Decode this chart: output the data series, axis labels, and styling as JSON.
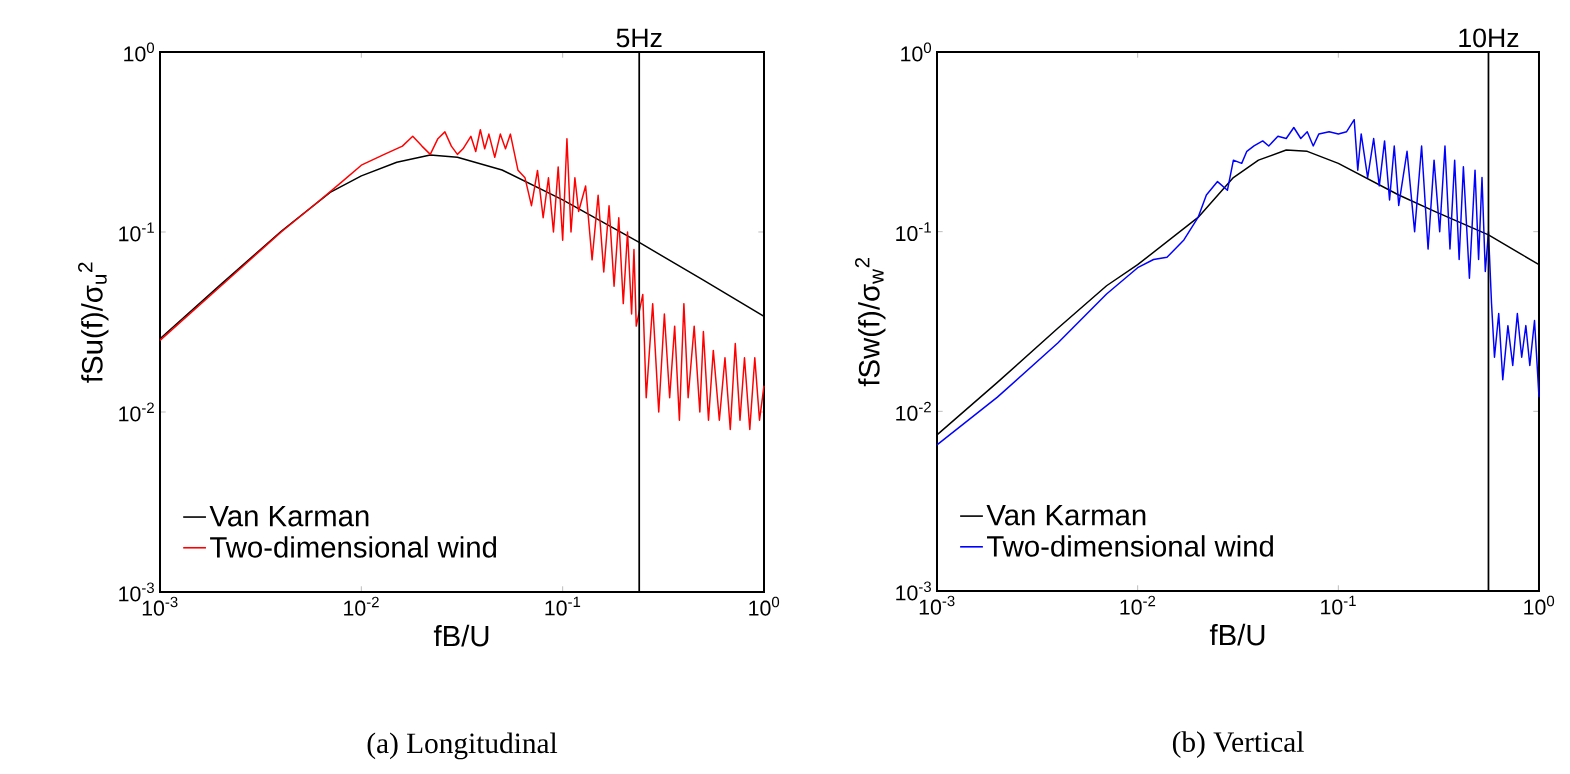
{
  "chart_data": [
    {
      "type": "line",
      "log": "xy",
      "xlabel": "fB/U",
      "ylabel": "fSu(f)/σ$_{u}$$^{2}$",
      "legend": "bottom left",
      "xlim": [
        0.001,
        1
      ],
      "ylim": [
        0.001,
        1
      ],
      "xticks": [
        {
          "value": 0.001,
          "label": "10$^{-3}$"
        },
        {
          "value": 0.01,
          "label": "10$^{-2}$"
        },
        {
          "value": 0.1,
          "label": "10$^{-1}$"
        },
        {
          "value": 1,
          "label": "10$^{0}$"
        }
      ],
      "yticks": [
        {
          "value": 0.001,
          "label": "10$^{-3}$"
        },
        {
          "value": 0.01,
          "label": "10$^{-2}$"
        },
        {
          "value": 0.1,
          "label": "10$^{-1}$"
        },
        {
          "value": 1,
          "label": "10$^{0}$"
        }
      ],
      "ref_lines": [
        {
          "axis": "x",
          "value": 0.24,
          "label": "5Hz",
          "color": "#000000"
        }
      ],
      "annotations": [
        "(a)  Longitudinal"
      ],
      "series": [
        {
          "name": "Van Karman",
          "color": "#000000",
          "x": [
            0.001,
            0.002,
            0.004,
            0.007,
            0.01,
            0.015,
            0.022,
            0.03,
            0.05,
            0.1,
            0.24,
            0.5,
            1
          ],
          "values": [
            0.0255,
            0.051,
            0.101,
            0.166,
            0.205,
            0.244,
            0.268,
            0.26,
            0.221,
            0.151,
            0.0875,
            0.054,
            0.034
          ]
        },
        {
          "name": "Two-dimensional wind",
          "color": "#ff0000",
          "x": [
            0.001,
            0.002,
            0.004,
            0.006,
            0.008,
            0.01,
            0.013,
            0.016,
            0.018,
            0.02,
            0.022,
            0.024,
            0.026,
            0.028,
            0.03,
            0.032,
            0.035,
            0.037,
            0.039,
            0.041,
            0.043,
            0.046,
            0.049,
            0.052,
            0.055,
            0.06,
            0.065,
            0.07,
            0.075,
            0.08,
            0.085,
            0.09,
            0.095,
            0.1,
            0.105,
            0.11,
            0.115,
            0.12,
            0.13,
            0.14,
            0.15,
            0.16,
            0.17,
            0.18,
            0.19,
            0.2,
            0.21,
            0.22,
            0.226,
            0.232,
            0.25,
            0.26,
            0.28,
            0.3,
            0.32,
            0.34,
            0.36,
            0.38,
            0.4,
            0.42,
            0.45,
            0.48,
            0.5,
            0.53,
            0.56,
            0.6,
            0.64,
            0.68,
            0.72,
            0.76,
            0.8,
            0.85,
            0.9,
            0.95,
            1.0
          ],
          "values": [
            0.025,
            0.05,
            0.1,
            0.145,
            0.19,
            0.235,
            0.27,
            0.3,
            0.34,
            0.3,
            0.27,
            0.33,
            0.36,
            0.3,
            0.27,
            0.29,
            0.34,
            0.28,
            0.37,
            0.29,
            0.35,
            0.26,
            0.35,
            0.29,
            0.35,
            0.22,
            0.2,
            0.14,
            0.22,
            0.12,
            0.2,
            0.1,
            0.23,
            0.09,
            0.33,
            0.1,
            0.2,
            0.13,
            0.18,
            0.07,
            0.16,
            0.06,
            0.14,
            0.05,
            0.12,
            0.04,
            0.1,
            0.035,
            0.08,
            0.03,
            0.045,
            0.012,
            0.04,
            0.01,
            0.035,
            0.012,
            0.03,
            0.009,
            0.04,
            0.012,
            0.03,
            0.01,
            0.028,
            0.009,
            0.022,
            0.009,
            0.02,
            0.008,
            0.024,
            0.009,
            0.02,
            0.008,
            0.02,
            0.009,
            0.014
          ]
        }
      ]
    },
    {
      "type": "line",
      "log": "xy",
      "xlabel": "fB/U",
      "ylabel": "fSw(f)/σ$_{w}$$^{2}$",
      "legend": "bottom left",
      "xlim": [
        0.001,
        1
      ],
      "ylim": [
        0.001,
        1
      ],
      "xticks": [
        {
          "value": 0.001,
          "label": "10$^{-3}$"
        },
        {
          "value": 0.01,
          "label": "10$^{-2}$"
        },
        {
          "value": 0.1,
          "label": "10$^{-1}$"
        },
        {
          "value": 1,
          "label": "10$^{0}$"
        }
      ],
      "yticks": [
        {
          "value": 0.001,
          "label": "10$^{-3}$"
        },
        {
          "value": 0.01,
          "label": "10$^{-2}$"
        },
        {
          "value": 0.1,
          "label": "10$^{-1}$"
        },
        {
          "value": 1,
          "label": "10$^{0}$"
        }
      ],
      "ref_lines": [
        {
          "axis": "x",
          "value": 0.56,
          "label": "10Hz",
          "color": "#000000"
        }
      ],
      "annotations": [
        "(b)  Vertical"
      ],
      "series": [
        {
          "name": "Van Karman",
          "color": "#000000",
          "x": [
            0.001,
            0.002,
            0.004,
            0.007,
            0.01,
            0.02,
            0.03,
            0.04,
            0.055,
            0.07,
            0.1,
            0.2,
            0.3,
            0.56,
            1
          ],
          "values": [
            0.0074,
            0.0145,
            0.029,
            0.05,
            0.0655,
            0.12,
            0.2,
            0.25,
            0.285,
            0.28,
            0.24,
            0.16,
            0.13,
            0.096,
            0.0655
          ]
        },
        {
          "name": "Two-dimensional wind",
          "color": "#0000ff",
          "x": [
            0.001,
            0.002,
            0.004,
            0.007,
            0.01,
            0.012,
            0.014,
            0.017,
            0.02,
            0.022,
            0.025,
            0.028,
            0.03,
            0.033,
            0.035,
            0.038,
            0.042,
            0.045,
            0.05,
            0.055,
            0.06,
            0.065,
            0.07,
            0.075,
            0.08,
            0.09,
            0.1,
            0.11,
            0.12,
            0.125,
            0.13,
            0.14,
            0.15,
            0.16,
            0.17,
            0.18,
            0.19,
            0.2,
            0.22,
            0.24,
            0.26,
            0.28,
            0.3,
            0.32,
            0.34,
            0.36,
            0.38,
            0.4,
            0.42,
            0.45,
            0.48,
            0.5,
            0.52,
            0.54,
            0.56,
            0.58,
            0.6,
            0.63,
            0.66,
            0.7,
            0.74,
            0.78,
            0.82,
            0.86,
            0.9,
            0.95,
            1.0
          ],
          "values": [
            0.0065,
            0.012,
            0.024,
            0.045,
            0.063,
            0.07,
            0.072,
            0.09,
            0.12,
            0.16,
            0.19,
            0.17,
            0.25,
            0.24,
            0.28,
            0.3,
            0.32,
            0.3,
            0.34,
            0.33,
            0.38,
            0.33,
            0.36,
            0.3,
            0.35,
            0.36,
            0.35,
            0.36,
            0.42,
            0.22,
            0.35,
            0.2,
            0.33,
            0.18,
            0.32,
            0.15,
            0.3,
            0.14,
            0.28,
            0.1,
            0.3,
            0.08,
            0.25,
            0.1,
            0.3,
            0.08,
            0.25,
            0.07,
            0.23,
            0.055,
            0.22,
            0.07,
            0.2,
            0.06,
            0.1,
            0.04,
            0.02,
            0.035,
            0.015,
            0.03,
            0.018,
            0.035,
            0.02,
            0.03,
            0.018,
            0.032,
            0.012
          ]
        }
      ]
    }
  ]
}
